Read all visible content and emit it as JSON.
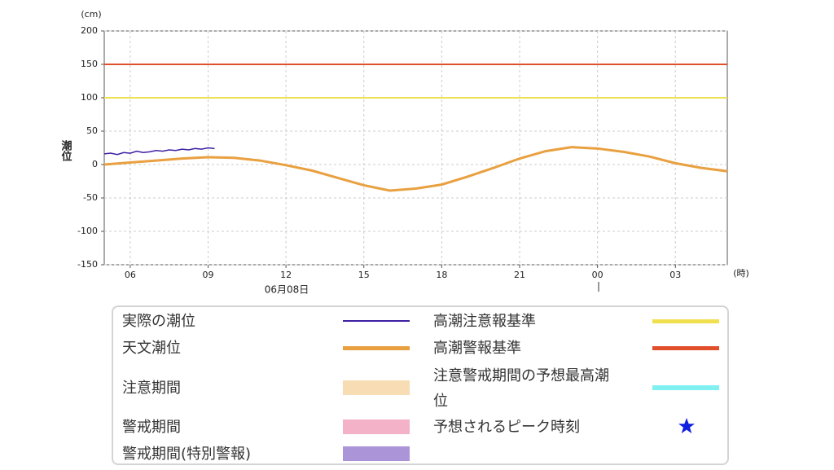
{
  "chart_data": {
    "type": "line",
    "y_unit": "(cm)",
    "y_label": "潮位",
    "x_unit": "(時)",
    "date_label": "06月08日",
    "xlim": [
      5,
      29
    ],
    "ylim": [
      -150,
      200
    ],
    "xticks": [
      {
        "value": 6,
        "label": "06"
      },
      {
        "value": 9,
        "label": "09"
      },
      12,
      15,
      18,
      21,
      {
        "value": 24,
        "label": "00"
      },
      {
        "value": 27,
        "label": "03"
      }
    ],
    "yticks": [
      200,
      150,
      100,
      50,
      0,
      -50,
      -100,
      -150
    ],
    "grid": true,
    "series": [
      {
        "name": "実際の潮位",
        "color": "#3d1fa3",
        "width": 1.5,
        "x": [
          5,
          5.25,
          5.5,
          5.75,
          6,
          6.25,
          6.5,
          6.75,
          7,
          7.25,
          7.5,
          7.75,
          8,
          8.25,
          8.5,
          8.75,
          9,
          9.25
        ],
        "values": [
          16,
          17,
          15,
          18,
          17,
          20,
          18,
          19,
          21,
          20,
          22,
          21,
          23,
          22,
          24,
          23,
          25,
          24
        ]
      },
      {
        "name": "天文潮位",
        "color": "#e9a040",
        "width": 3,
        "x": [
          5,
          6,
          7,
          8,
          9,
          10,
          11,
          12,
          13,
          14,
          15,
          16,
          17,
          18,
          19,
          20,
          21,
          22,
          23,
          24,
          25,
          26,
          27,
          28,
          29
        ],
        "values": [
          0,
          3,
          6,
          9,
          11,
          10,
          6,
          -1,
          -9,
          -20,
          -31,
          -39,
          -36,
          -30,
          -18,
          -5,
          9,
          20,
          26,
          24,
          19,
          12,
          2,
          -5,
          -10
        ]
      },
      {
        "name": "高潮注意報基準",
        "color": "#f0e050",
        "width": 2,
        "x": [
          5,
          29
        ],
        "values": [
          100,
          100
        ]
      },
      {
        "name": "高潮警報基準",
        "color": "#e0502c",
        "width": 2,
        "x": [
          5,
          29
        ],
        "values": [
          150,
          150
        ]
      }
    ],
    "legend_extra": [
      {
        "name": "注意期間",
        "color": "#f8dcb4"
      },
      {
        "name": "警戒期間",
        "color": "#f4b2c8"
      },
      {
        "name": "警戒期間(特別警報)",
        "color": "#ac94d8"
      },
      {
        "name": "注意警戒期間の予想最高潮位",
        "color": "#80f0f0"
      },
      {
        "name": "予想されるピーク時刻",
        "color": "#1020e0"
      }
    ]
  }
}
